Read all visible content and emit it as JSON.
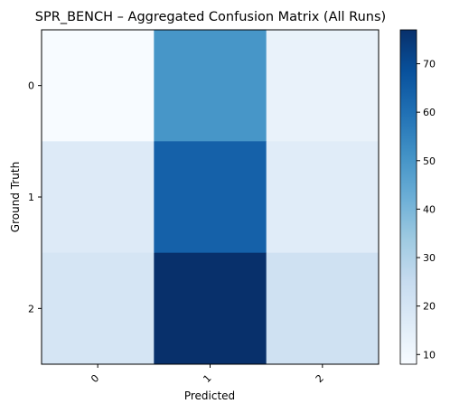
{
  "chart_data": {
    "type": "heatmap",
    "title": "SPR_BENCH – Aggregated Confusion Matrix (All Runs)",
    "xlabel": "Predicted",
    "ylabel": "Ground Truth",
    "x_categories": [
      "0",
      "1",
      "2"
    ],
    "y_categories": [
      "0",
      "1",
      "2"
    ],
    "values": [
      [
        8,
        50,
        13
      ],
      [
        17,
        64,
        16
      ],
      [
        20,
        77,
        22
      ]
    ],
    "colorbar": {
      "min": 8,
      "max": 77,
      "ticks": [
        10,
        20,
        30,
        40,
        50,
        60,
        70
      ],
      "colormap": "Blues"
    },
    "x_tick_rotation_deg": 45,
    "grid": false
  }
}
